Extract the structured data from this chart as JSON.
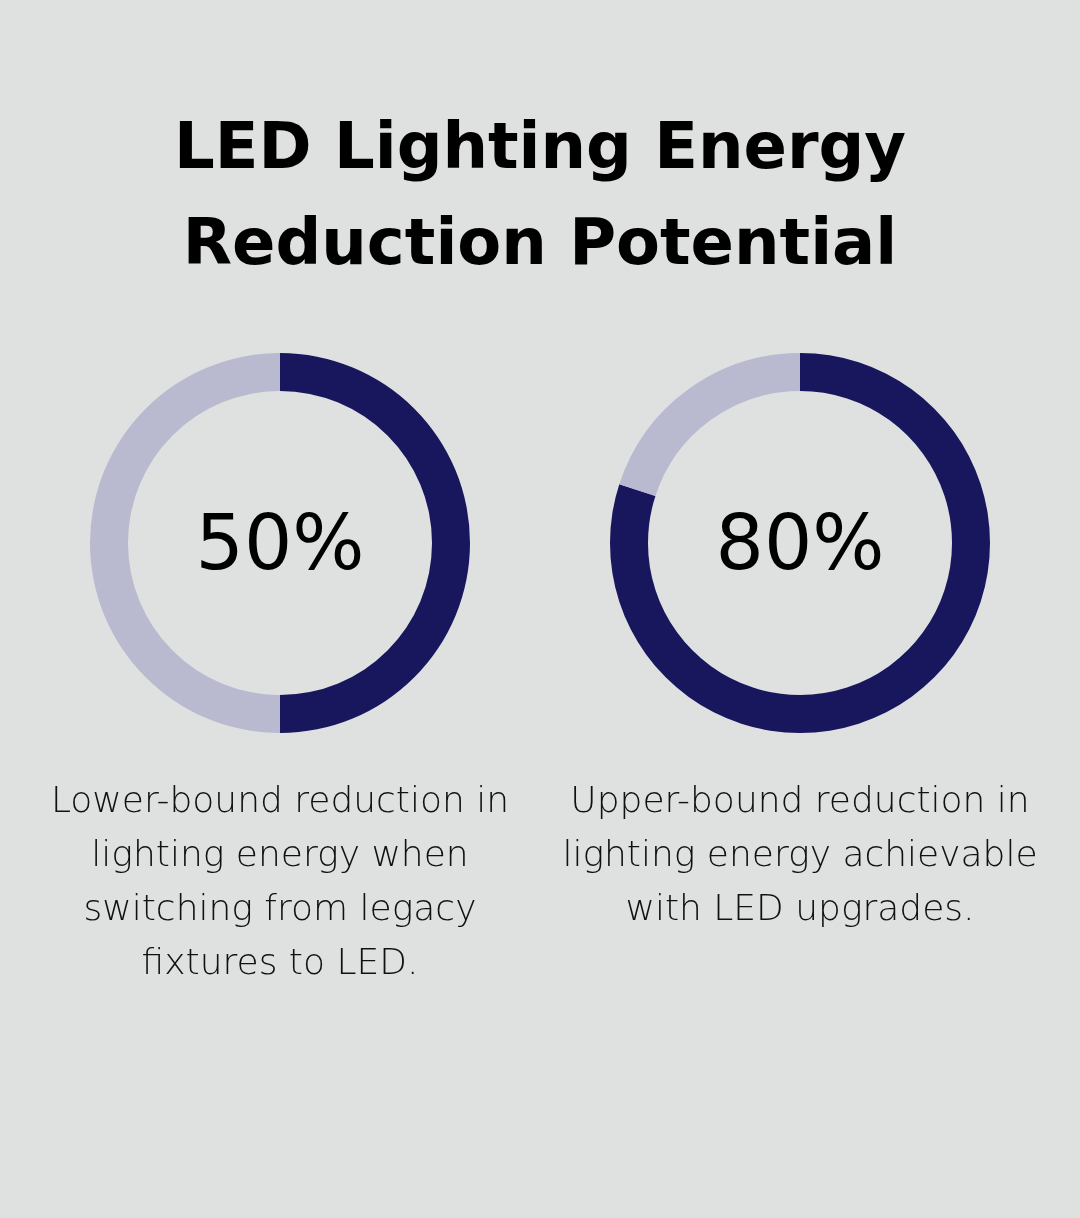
{
  "chart_data": [
    {
      "type": "donut",
      "title": "LED Lighting Energy Reduction Potential",
      "categories": [
        null,
        null
      ],
      "values": [
        50,
        50
      ],
      "colors": [
        "#18175e",
        "#b9b9d0"
      ],
      "legend": false,
      "annotations": [
        "50%",
        "Lower-bound reduction in lighting energy when switching from legacy fixtures to LED."
      ]
    },
    {
      "type": "donut",
      "categories": [
        null,
        null
      ],
      "values": [
        80,
        20
      ],
      "colors": [
        "#18175e",
        "#b9b9d0"
      ],
      "legend": false,
      "annotations": [
        "80%",
        "Upper-bound reduction in lighting energy achievable with LED upgrades."
      ]
    }
  ]
}
